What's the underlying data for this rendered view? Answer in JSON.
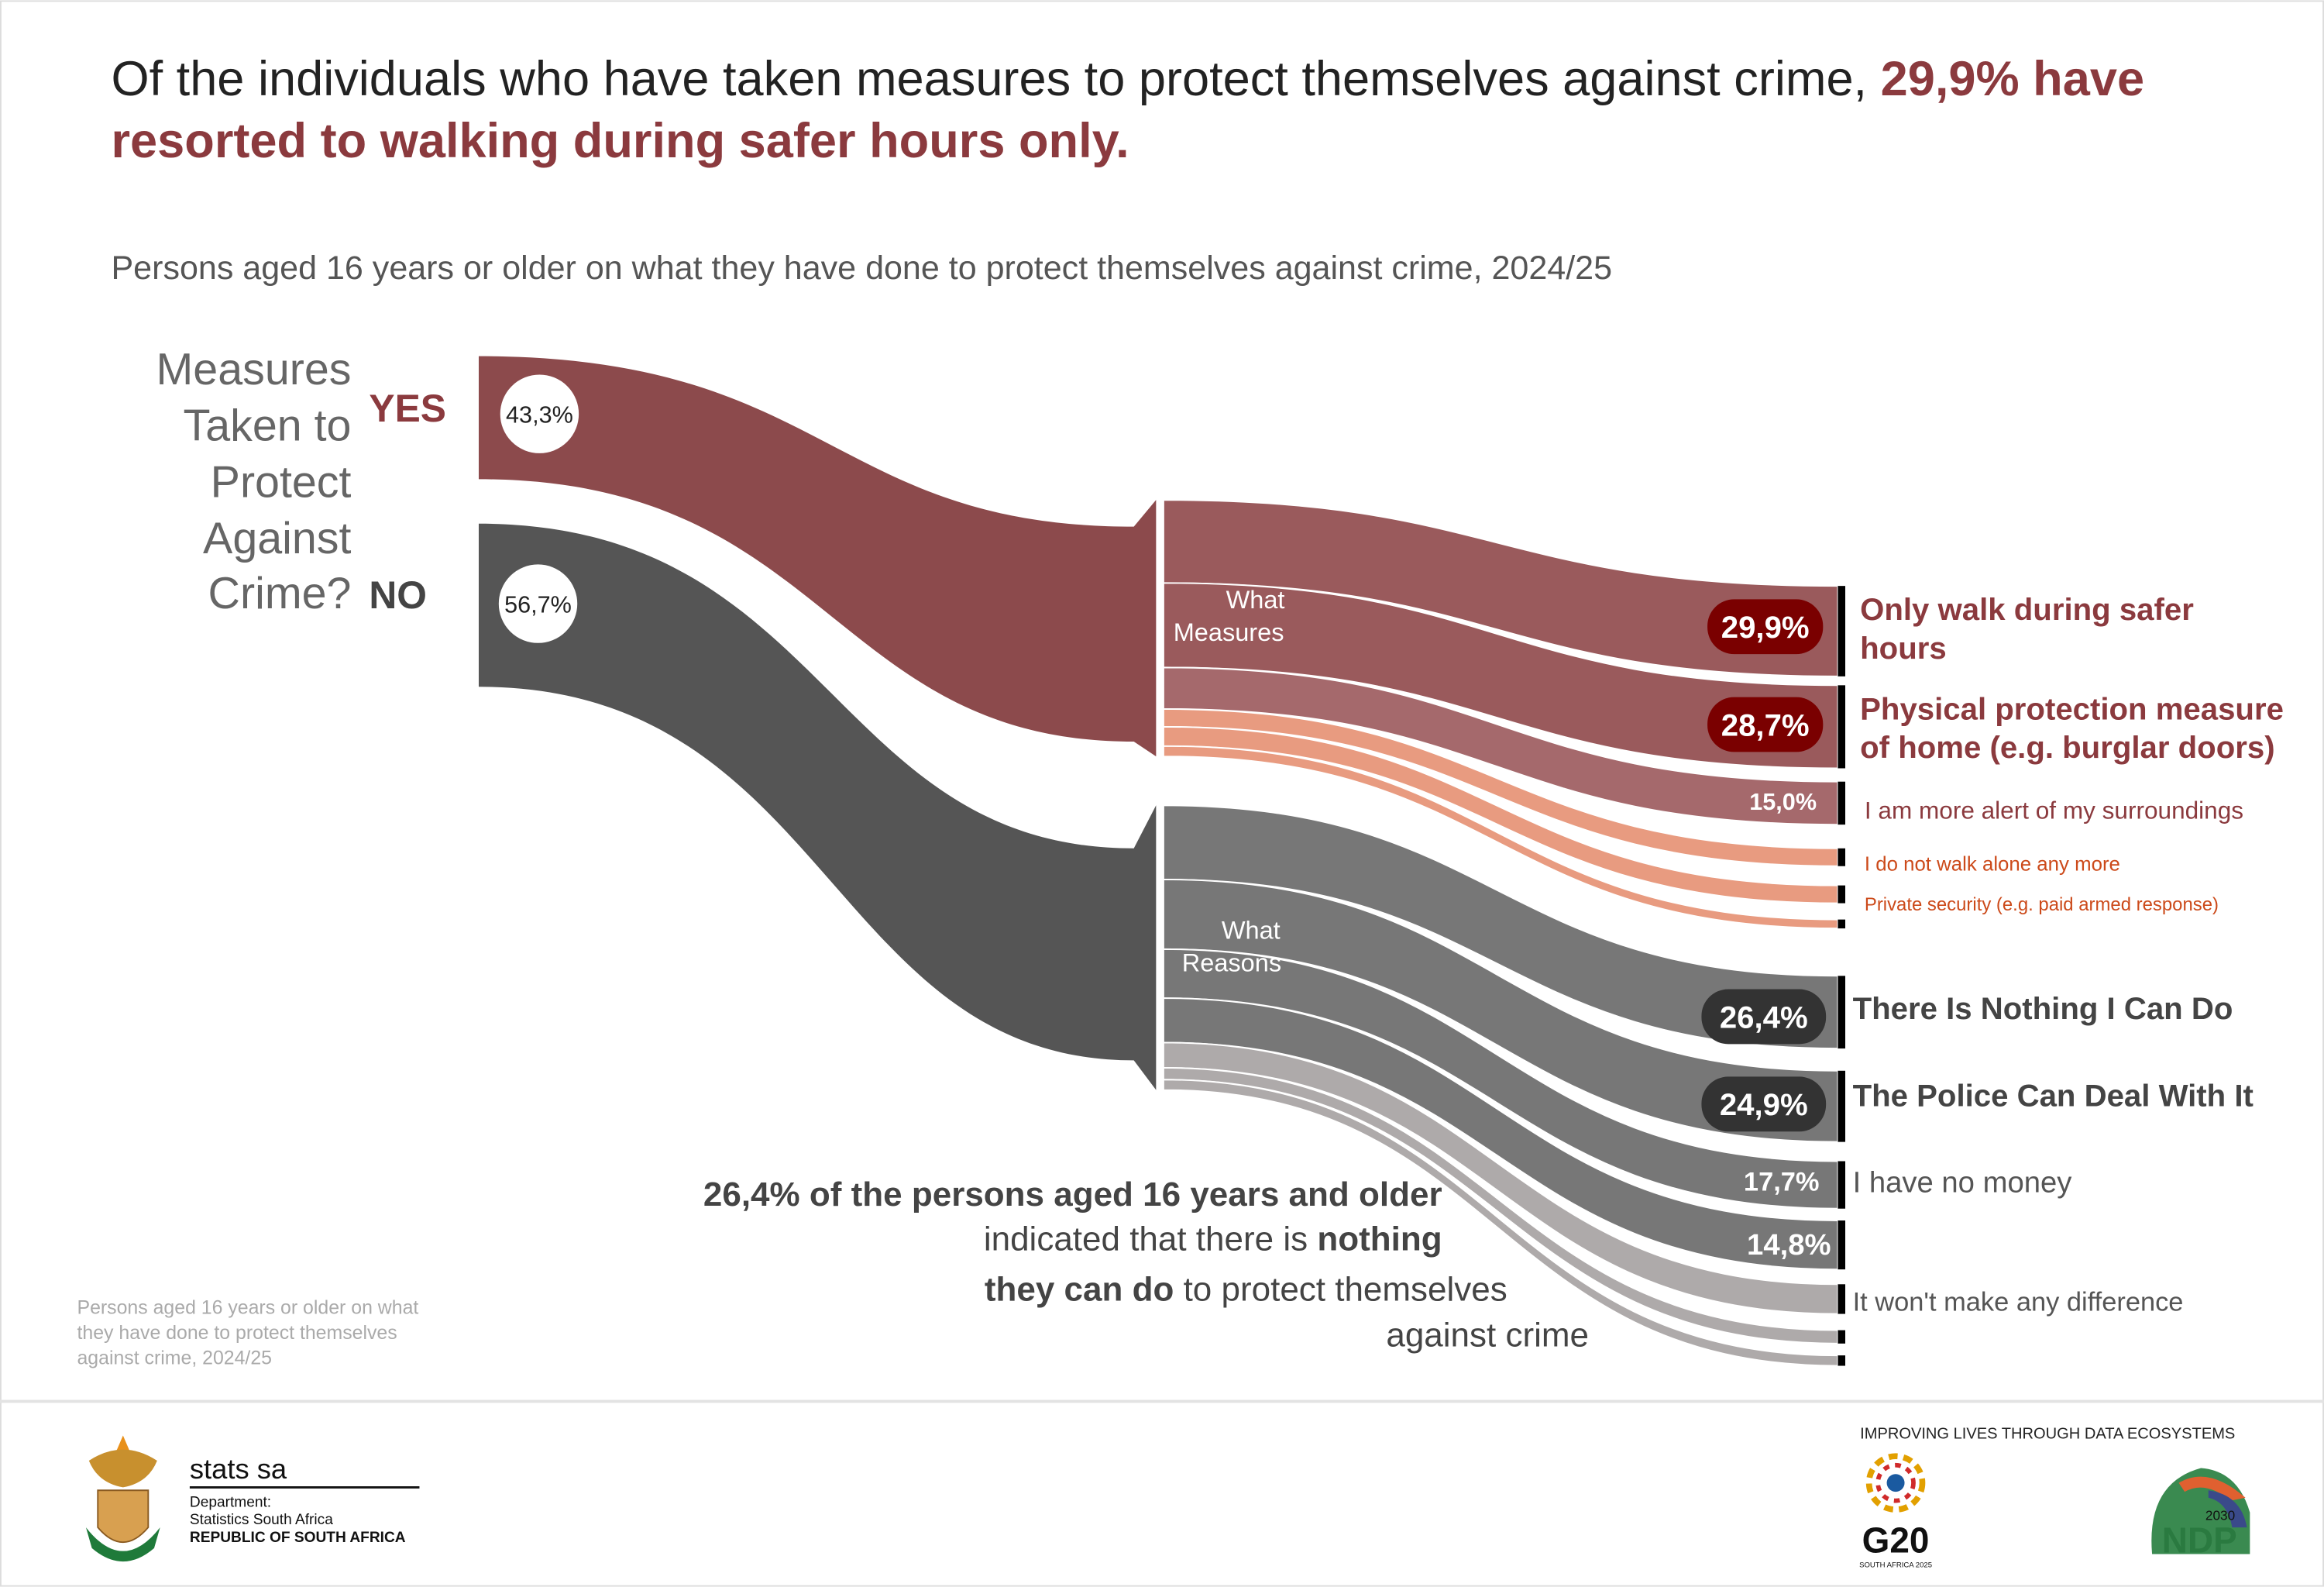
{
  "header": {
    "title_plain": "Of the individuals who have taken measures to protect themselves against crime,",
    "title_highlight_1": "29,9% have",
    "title_highlight_2": "resorted to walking during safer hours only.",
    "subtitle": "Persons aged 16 years or older on what they have done to protect themselves against crime, 2024/25"
  },
  "colors": {
    "accent": "#8b3a3e",
    "yes_band": "#8c4a4c",
    "no_band": "#555555",
    "pill_red": "#7a0000",
    "pill_dark": "#333333",
    "orange": "#e89b80"
  },
  "chart_data": {
    "type": "sankey",
    "title": "Measures Taken to Protect Against Crime?",
    "question_lines": [
      "Measures",
      "Taken to",
      "Protect",
      "Against",
      "Crime?"
    ],
    "source_nodes": [
      {
        "label": "YES",
        "value": 43.3,
        "value_label": "43,3%"
      },
      {
        "label": "NO",
        "value": 56.7,
        "value_label": "56,7%"
      }
    ],
    "middle_nodes": [
      {
        "label_lines": [
          "What",
          "Measures"
        ],
        "from": "YES"
      },
      {
        "label_lines": [
          "What",
          "Reasons"
        ],
        "from": "NO"
      }
    ],
    "measures": [
      {
        "label": "Only walk during safer hours",
        "label_lines": [
          "Only walk during safer",
          "hours"
        ],
        "value": 29.9,
        "value_label": "29,9%"
      },
      {
        "label": "Physical protection measure of home (e.g. burglar doors)",
        "label_lines": [
          "Physical protection measure",
          "of home (e.g. burglar doors)"
        ],
        "value": 28.7,
        "value_label": "28,7%"
      },
      {
        "label": "I am more alert of my surroundings",
        "value": 15.0,
        "value_label": "15,0%"
      },
      {
        "label": "I do not walk alone any more",
        "value": null
      },
      {
        "label": "Private security (e.g. paid armed response)",
        "value": null
      },
      {
        "label": "",
        "value": null
      }
    ],
    "reasons": [
      {
        "label": "There Is Nothing I Can Do",
        "value": 26.4,
        "value_label": "26,4%"
      },
      {
        "label": "The Police Can Deal With It",
        "value": 24.9,
        "value_label": "24,9%"
      },
      {
        "label": "I have no money",
        "value": 17.7,
        "value_label": "17,7%"
      },
      {
        "label": "",
        "value": 14.8,
        "value_label": "14,8%"
      },
      {
        "label": "It won't make any difference",
        "value": null
      },
      {
        "label": "",
        "value": null
      },
      {
        "label": "",
        "value": null
      }
    ]
  },
  "annotation": {
    "line1": "26,4% of the persons aged 16 years and older",
    "line2_plain": "indicated that there is ",
    "line2_bold": "nothing",
    "line3_bold": "they can do",
    "line3_plain": " to protect themselves",
    "line4": "against crime"
  },
  "footnote": [
    "Persons aged 16 years or older on what",
    "they have done to protect themselves",
    "against crime, 2024/25"
  ],
  "footer": {
    "org_name": "stats sa",
    "dept_label": "Department:",
    "dept_name": "Statistics South Africa",
    "country": "REPUBLIC OF SOUTH AFRICA",
    "tagline": "IMPROVING LIVES THROUGH DATA ECOSYSTEMS",
    "g20_text": "G20",
    "g20_sub": "SOUTH AFRICA 2025",
    "ndp_text": "NDP",
    "ndp_year": "2030"
  }
}
